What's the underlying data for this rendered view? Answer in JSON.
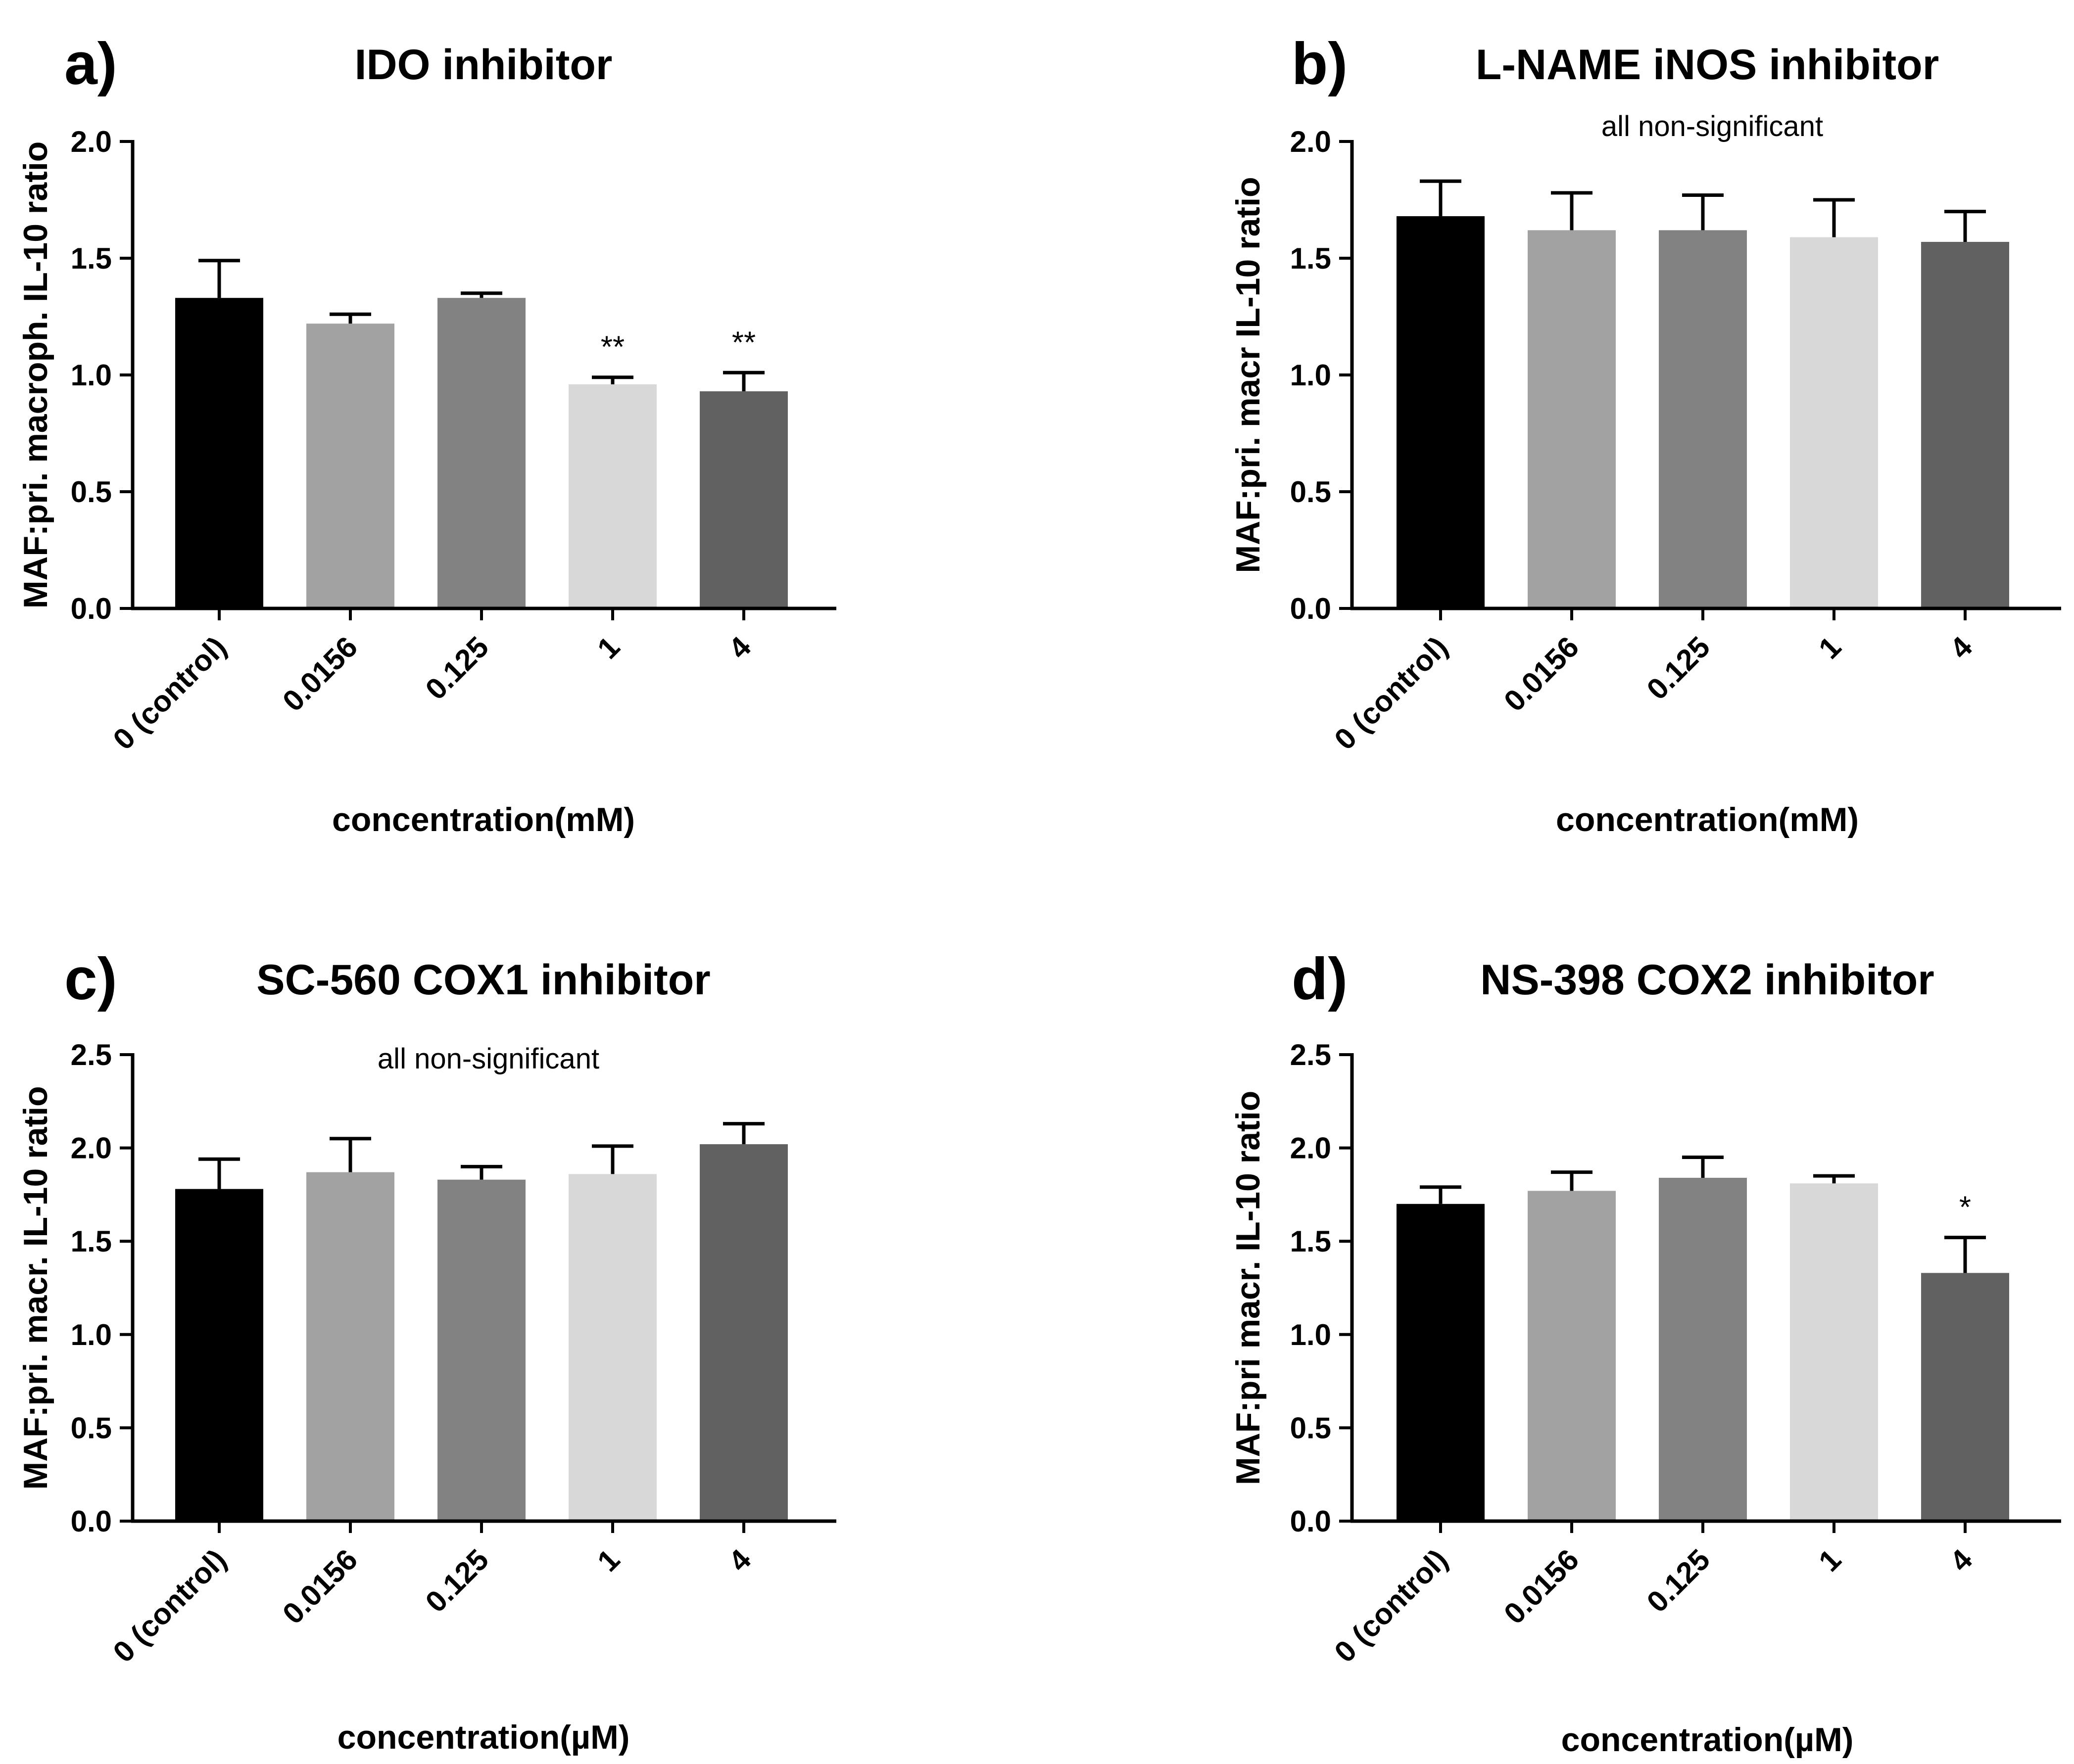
{
  "chart_data": [
    {
      "type": "bar",
      "panel": "a)",
      "title": "IDO inhibitor",
      "xlabel": "concentration(mM)",
      "ylabel": "MAF:pri. macroph. IL-10 ratio",
      "annotation": "",
      "categories": [
        "0 (control)",
        "0.0156",
        "0.125",
        "1",
        "4"
      ],
      "values": [
        1.33,
        1.22,
        1.33,
        0.96,
        0.93
      ],
      "errors": [
        0.16,
        0.04,
        0.02,
        0.03,
        0.08
      ],
      "significance": [
        "",
        "",
        "",
        "**",
        "**"
      ],
      "colors": [
        "#000000",
        "#a2a2a2",
        "#828282",
        "#d8d8d8",
        "#616161"
      ],
      "ylim": [
        0,
        2.0
      ],
      "yticks": [
        "0.0",
        "0.5",
        "1.0",
        "1.5",
        "2.0"
      ],
      "ytick_values": [
        0,
        0.5,
        1.0,
        1.5,
        2.0
      ]
    },
    {
      "type": "bar",
      "panel": "b)",
      "title": "L-NAME iNOS inhibitor",
      "xlabel": "concentration(mM)",
      "ylabel": "MAF:pri. macr IL-10 ratio",
      "annotation": "all non-significant",
      "categories": [
        "0 (control)",
        "0.0156",
        "0.125",
        "1",
        "4"
      ],
      "values": [
        1.68,
        1.62,
        1.62,
        1.59,
        1.57
      ],
      "errors": [
        0.15,
        0.16,
        0.15,
        0.16,
        0.13
      ],
      "significance": [
        "",
        "",
        "",
        "",
        ""
      ],
      "colors": [
        "#000000",
        "#a2a2a2",
        "#828282",
        "#d8d8d8",
        "#616161"
      ],
      "ylim": [
        0,
        2.0
      ],
      "yticks": [
        "0.0",
        "0.5",
        "1.0",
        "1.5",
        "2.0"
      ],
      "ytick_values": [
        0,
        0.5,
        1.0,
        1.5,
        2.0
      ]
    },
    {
      "type": "bar",
      "panel": "c)",
      "title": "SC-560 COX1 inhibitor",
      "xlabel": "concentration(µM)",
      "ylabel": "MAF:pri. macr. IL-10 ratio",
      "annotation": "all non-significant",
      "categories": [
        "0 (control)",
        "0.0156",
        "0.125",
        "1",
        "4"
      ],
      "values": [
        1.78,
        1.87,
        1.83,
        1.86,
        2.02
      ],
      "errors": [
        0.16,
        0.18,
        0.07,
        0.15,
        0.11
      ],
      "significance": [
        "",
        "",
        "",
        "",
        ""
      ],
      "colors": [
        "#000000",
        "#a2a2a2",
        "#828282",
        "#d8d8d8",
        "#616161"
      ],
      "ylim": [
        0,
        2.5
      ],
      "yticks": [
        "0.0",
        "0.5",
        "1.0",
        "1.5",
        "2.0",
        "2.5"
      ],
      "ytick_values": [
        0,
        0.5,
        1.0,
        1.5,
        2.0,
        2.5
      ]
    },
    {
      "type": "bar",
      "panel": "d)",
      "title": "NS-398 COX2 inhibitor",
      "xlabel": "concentration(µM)",
      "ylabel": "MAF:pri macr. IL-10 ratio",
      "annotation": "",
      "categories": [
        "0 (control)",
        "0.0156",
        "0.125",
        "1",
        "4"
      ],
      "values": [
        1.7,
        1.77,
        1.84,
        1.81,
        1.33
      ],
      "errors": [
        0.09,
        0.1,
        0.11,
        0.04,
        0.19
      ],
      "significance": [
        "",
        "",
        "",
        "",
        "*"
      ],
      "colors": [
        "#000000",
        "#a2a2a2",
        "#828282",
        "#d8d8d8",
        "#616161"
      ],
      "ylim": [
        0,
        2.5
      ],
      "yticks": [
        "0.0",
        "0.5",
        "1.0",
        "1.5",
        "2.0",
        "2.5"
      ],
      "ytick_values": [
        0,
        0.5,
        1.0,
        1.5,
        2.0,
        2.5
      ]
    }
  ]
}
